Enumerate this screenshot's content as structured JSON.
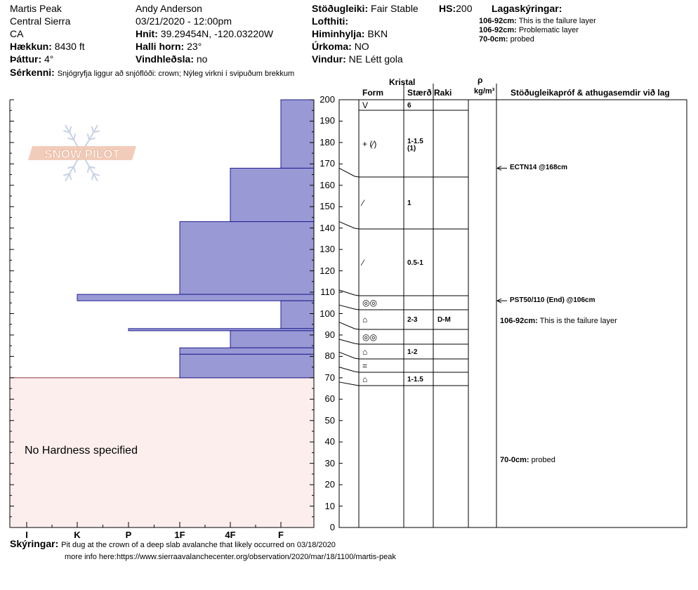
{
  "header": {
    "location": "Martis Peak",
    "range": "Central Sierra",
    "state": "CA",
    "elevation_label": "Hækkun:",
    "elevation": "8430 ft",
    "aspect_label": "Þáttur:",
    "aspect": "4°",
    "observer": "Andy Anderson",
    "datetime": "03/21/2020 - 12:00pm",
    "coords_label": "Hnit:",
    "coords": "39.29454N, -120.03220W",
    "slope_label": "Halli horn:",
    "slope": "23°",
    "wind_loading_label": "Vindhleðsla:",
    "wind_loading": "no",
    "stability_label": "Stöðugleiki:",
    "stability": "Fair Stable",
    "hs_label": "HS:",
    "hs": "200",
    "air_temp_label": "Lofthiti:",
    "air_temp": "",
    "sky_label": "Himinhylja:",
    "sky": "BKN",
    "precip_label": "Úrkoma:",
    "precip": "NO",
    "wind_label": "Vindur:",
    "wind": "NE Létt gola",
    "special_label": "Sérkenni:",
    "special": "Snjógryfja liggur að snjóflóði: crown; Nýleg virkni í svipuðum brekkum",
    "legend_title": "Lagaskýringar:",
    "legend": [
      {
        "range": "106-92cm:",
        "text": "This is the failure layer"
      },
      {
        "range": "106-92cm:",
        "text": "Problematic layer"
      },
      {
        "range": "70-0cm:",
        "text": "probed"
      }
    ]
  },
  "logo_text": "SNOW PILOT",
  "no_hardness_text": "No Hardness specified",
  "columns": {
    "crystal": "Kristal",
    "form": "Form",
    "size": "Stærð",
    "moisture": "Raki",
    "rho": "ρ",
    "density_unit": "kg/m³",
    "tests": "Stöðugleikapróf & athugasemdir við lag"
  },
  "footer": {
    "comments_label": "Skýringar:",
    "line1": "Pit dug at the crown of a deep slab avalanche that likely occurred on 03/18/2020",
    "line2": "more info here:https://www.sierraavalanchecenter.org/observation/2020/mar/18/1100/martis-peak"
  },
  "colors": {
    "hardness_fill": "#9999d6",
    "hardness_stroke": "#1f1f8f",
    "probed_fill": "#fdeeee"
  },
  "chart_data": {
    "type": "bar",
    "orientation": "horizontal hardness profile",
    "y_axis_label": "cm",
    "ylim": [
      0,
      200
    ],
    "y_ticks": [
      0,
      10,
      20,
      30,
      40,
      50,
      60,
      70,
      80,
      90,
      100,
      110,
      120,
      130,
      140,
      150,
      160,
      170,
      180,
      190,
      200
    ],
    "hardness_scale": [
      "I",
      "K",
      "P",
      "1F",
      "4F",
      "F"
    ],
    "hardness_layers": [
      {
        "top": 200,
        "bottom": 168,
        "hardness": "F"
      },
      {
        "top": 168,
        "bottom": 143,
        "hardness": "4F"
      },
      {
        "top": 143,
        "bottom": 109,
        "hardness": "1F"
      },
      {
        "top": 109,
        "bottom": 106,
        "hardness": "K"
      },
      {
        "top": 106,
        "bottom": 93,
        "hardness": "F"
      },
      {
        "top": 93,
        "bottom": 92,
        "hardness": "P"
      },
      {
        "top": 92,
        "bottom": 84,
        "hardness": "4F"
      },
      {
        "top": 84,
        "bottom": 81,
        "hardness": "1F"
      },
      {
        "top": 81,
        "bottom": 70,
        "hardness": "1F"
      }
    ],
    "grain_layers": [
      {
        "top": 200,
        "bottom": 195,
        "form": "V",
        "size": "6",
        "moisture": ""
      },
      {
        "top": 195,
        "bottom": 168,
        "form": "+ (⁄)",
        "size": "1-1.5\n(1)",
        "moisture": ""
      },
      {
        "top": 168,
        "bottom": 143,
        "form": "⁄",
        "size": "1",
        "moisture": ""
      },
      {
        "top": 143,
        "bottom": 111,
        "form": "⁄",
        "size": "0.5-1",
        "moisture": ""
      },
      {
        "top": 111,
        "bottom": 104,
        "form": "◎◎",
        "size": "",
        "moisture": ""
      },
      {
        "top": 104,
        "bottom": 96,
        "form": "⌂",
        "size": "2-3",
        "moisture": "D-M"
      },
      {
        "top": 96,
        "bottom": 88,
        "form": "◎◎",
        "size": "",
        "moisture": ""
      },
      {
        "top": 88,
        "bottom": 82,
        "form": "⌂",
        "size": "1-2",
        "moisture": ""
      },
      {
        "top": 82,
        "bottom": 75,
        "form": "=",
        "size": "",
        "moisture": ""
      },
      {
        "top": 75,
        "bottom": 68,
        "form": "⌂",
        "size": "1-1.5",
        "moisture": ""
      }
    ],
    "tests": [
      {
        "depth": 168,
        "label": "ECTN14 @168cm"
      },
      {
        "depth": 106,
        "label": "PST50/110 (End) @106cm"
      }
    ],
    "layer_comments": [
      {
        "depth": 96,
        "range": "106-92cm:",
        "text": "This is the failure layer"
      },
      {
        "depth": 31,
        "range": "70-0cm:",
        "text": "probed"
      }
    ],
    "probed": {
      "top": 70,
      "bottom": 0
    }
  }
}
